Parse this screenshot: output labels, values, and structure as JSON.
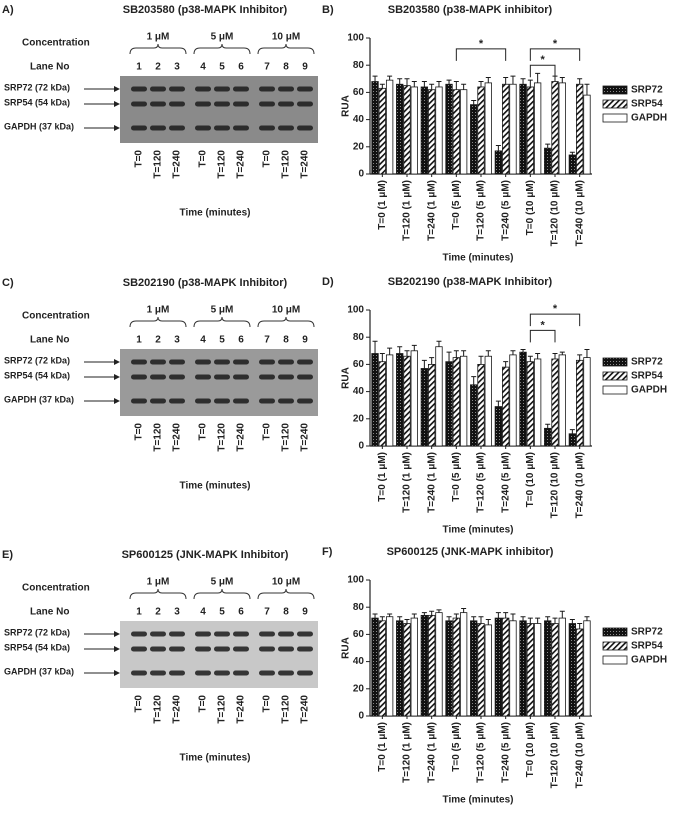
{
  "blots": [
    {
      "panel_label": "A)",
      "title": "SB203580 (p38-MAPK Inhibitor)",
      "concentration_label": "Concentration",
      "concentrations": [
        "1 μM",
        "5 μM",
        "10 μM"
      ],
      "lane_label": "Lane No",
      "lanes": [
        1,
        2,
        3,
        4,
        5,
        6,
        7,
        8,
        9
      ],
      "bands": [
        "SRP72 (72 kDa)",
        "SRP54 (54 kDa)",
        "GAPDH (37 kDa)"
      ],
      "times": [
        "T=0",
        "T=120",
        "T=240",
        "T=0",
        "T=120",
        "T=240",
        "T=0",
        "T=120",
        "T=240"
      ],
      "x_label": "Time (minutes)"
    },
    {
      "panel_label": "C)",
      "title": "SB202190 (p38-MAPK Inhibitor)",
      "concentration_label": "Concentration",
      "concentrations": [
        "1 μM",
        "5 μM",
        "10 μM"
      ],
      "lane_label": "Lane No",
      "lanes": [
        1,
        2,
        3,
        4,
        5,
        6,
        7,
        8,
        9
      ],
      "bands": [
        "SRP72 (72 kDa)",
        "SRP54 (54 kDa)",
        "GAPDH (37 kDa)"
      ],
      "times": [
        "T=0",
        "T=120",
        "T=240",
        "T=0",
        "T=120",
        "T=240",
        "T=0",
        "T=120",
        "T=240"
      ],
      "x_label": "Time (minutes)"
    },
    {
      "panel_label": "E)",
      "title": "SP600125 (JNK-MAPK Inhibitor)",
      "concentration_label": "Concentration",
      "concentrations": [
        "1 μM",
        "5 μM",
        "10 μM"
      ],
      "lane_label": "Lane No",
      "lanes": [
        1,
        2,
        3,
        4,
        5,
        6,
        7,
        8,
        9
      ],
      "bands": [
        "SRP72 (72 kDa)",
        "SRP54 (54 kDa)",
        "GAPDH (37 kDa)"
      ],
      "times": [
        "T=0",
        "T=120",
        "T=240",
        "T=0",
        "T=120",
        "T=240",
        "T=0",
        "T=120",
        "T=240"
      ],
      "x_label": "Time (minutes)"
    }
  ],
  "chart_data": [
    {
      "type": "bar",
      "panel_label": "B)",
      "title": "SB203580 (p38-MAPK inhibitor)",
      "y_label": "RUA",
      "x_label": "Time (minutes)",
      "categories": [
        "T=0 (1 μM)",
        "T=120 (1 μM)",
        "T=240 (1 μM)",
        "T=0 (5 μM)",
        "T=120 (5 μM)",
        "T=240 (5 μM)",
        "T=0 (10 μM)",
        "T=120 (10 μM)",
        "T=240 (10 μM)"
      ],
      "series": [
        {
          "name": "SRP72",
          "color": "#1a1a1a",
          "pattern": "dots",
          "values": [
            68,
            66,
            64,
            66,
            51,
            17,
            66,
            19,
            14
          ],
          "errors": [
            4,
            4,
            4,
            3,
            3,
            4,
            4,
            3,
            2
          ]
        },
        {
          "name": "SRP54",
          "color": "#1a1a1a",
          "pattern": "diagonal",
          "values": [
            63,
            65,
            62,
            62,
            64,
            66,
            64,
            68,
            66
          ],
          "errors": [
            3,
            5,
            4,
            6,
            4,
            5,
            5,
            4,
            4
          ]
        },
        {
          "name": "GAPDH",
          "color": "#1a1a1a",
          "pattern": "none",
          "values": [
            69,
            64,
            64,
            62,
            67,
            66,
            67,
            67,
            58
          ],
          "errors": [
            3,
            4,
            4,
            4,
            4,
            6,
            7,
            4,
            8
          ]
        }
      ],
      "brackets": [
        {
          "label": "*",
          "from": "T=0 (5 μM)",
          "to": "T=240 (5 μM)",
          "y": 92
        },
        {
          "label": "*",
          "from": "T=0 (10 μM)",
          "to": "T=120 (10 μM)",
          "y": 80
        },
        {
          "label": "*",
          "from": "T=0 (10 μM)",
          "to": "T=240 (10 μM)",
          "y": 92
        }
      ],
      "ylim": [
        0,
        100
      ],
      "yticks": [
        0,
        20,
        40,
        60,
        80,
        100
      ]
    },
    {
      "type": "bar",
      "panel_label": "D)",
      "title": "SB202190 (p38-MAPK Inhibitor)",
      "y_label": "RUA",
      "x_label": "Time (minutes)",
      "categories": [
        "T=0 (1 μM)",
        "T=120 (1 μM)",
        "T=240 (1 μM)",
        "T=0 (5 μM)",
        "T=120 (5 μM)",
        "T=240 (5 μM)",
        "T=0 (10 μM)",
        "T=120 (10 μM)",
        "T=240 (10 μM)"
      ],
      "series": [
        {
          "name": "SRP72",
          "color": "#1a1a1a",
          "pattern": "dots",
          "values": [
            68,
            68,
            57,
            62,
            45,
            29,
            69,
            13,
            9
          ],
          "errors": [
            9,
            5,
            6,
            7,
            6,
            4,
            2,
            3,
            3
          ]
        },
        {
          "name": "SRP54",
          "color": "#1a1a1a",
          "pattern": "diagonal",
          "values": [
            62,
            66,
            60,
            65,
            60,
            58,
            62,
            64,
            63
          ],
          "errors": [
            6,
            4,
            5,
            5,
            6,
            4,
            4,
            4,
            4
          ]
        },
        {
          "name": "GAPDH",
          "color": "#1a1a1a",
          "pattern": "none",
          "values": [
            67,
            70,
            73,
            66,
            66,
            67,
            64,
            67,
            65
          ],
          "errors": [
            5,
            4,
            4,
            4,
            4,
            3,
            4,
            2,
            6
          ]
        }
      ],
      "brackets": [
        {
          "label": "*",
          "from": "T=0 (10 μM)",
          "to": "T=120 (10 μM)",
          "y": 85
        },
        {
          "label": "*",
          "from": "T=0 (10 μM)",
          "to": "T=240 (10 μM)",
          "y": 97
        }
      ],
      "ylim": [
        0,
        100
      ],
      "yticks": [
        0,
        20,
        40,
        60,
        80,
        100
      ]
    },
    {
      "type": "bar",
      "panel_label": "F)",
      "title": "SP600125 (JNK-MAPK inhibitor)",
      "y_label": "RUA",
      "x_label": "Time (minutes)",
      "categories": [
        "T=0 (1 μM)",
        "T=120 (1 μM)",
        "T=240 (1 μM)",
        "T=0 (5 μM)",
        "T=120 (5 μM)",
        "T=240 (5 μM)",
        "T=0 (10 μM)",
        "T=120 (10 μM)",
        "T=240 (10 μM)"
      ],
      "series": [
        {
          "name": "SRP72",
          "color": "#1a1a1a",
          "pattern": "dots",
          "values": [
            72,
            70,
            74,
            70,
            70,
            72,
            70,
            70,
            68
          ],
          "errors": [
            3,
            3,
            2,
            3,
            3,
            4,
            3,
            3,
            3
          ]
        },
        {
          "name": "SRP54",
          "color": "#1a1a1a",
          "pattern": "diagonal",
          "values": [
            70,
            68,
            74,
            72,
            68,
            72,
            68,
            68,
            64
          ],
          "errors": [
            3,
            3,
            3,
            3,
            5,
            4,
            4,
            4,
            4
          ]
        },
        {
          "name": "GAPDH",
          "color": "#1a1a1a",
          "pattern": "none",
          "values": [
            73,
            72,
            76,
            76,
            67,
            70,
            68,
            72,
            70
          ],
          "errors": [
            2,
            3,
            2,
            3,
            4,
            5,
            4,
            5,
            3
          ]
        }
      ],
      "brackets": [],
      "ylim": [
        0,
        100
      ],
      "yticks": [
        0,
        20,
        40,
        60,
        80,
        100
      ]
    }
  ]
}
